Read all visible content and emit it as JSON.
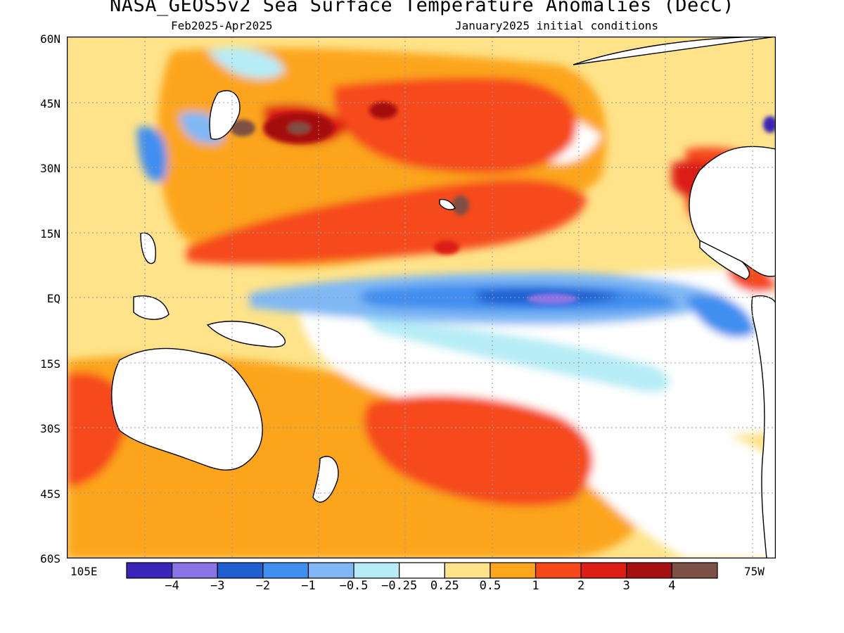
{
  "header": {
    "title": "NASA_GEOS5v2 Sea Surface Temperature Anomalies (DecC)",
    "period": "Feb2025-Apr2025",
    "initial_conditions": "January2025 initial conditions"
  },
  "axes": {
    "lat_labels": [
      "60N",
      "45N",
      "30N",
      "15N",
      "EQ",
      "15S",
      "30S",
      "45S",
      "60S"
    ],
    "lon_left": "105E",
    "lon_right": "75W"
  },
  "colorbar": {
    "colors": [
      "#3b24b8",
      "#8a74e6",
      "#1f5fd0",
      "#3f8ef0",
      "#7fb8f4",
      "#b6ecf6",
      "#ffffff",
      "#fee38a",
      "#fca51d",
      "#f6481a",
      "#dc1e14",
      "#a51010",
      "#7d5045"
    ],
    "labels": [
      "-4",
      "-3",
      "-2",
      "-1",
      "-0.5",
      "-0.25",
      "0.25",
      "0.5",
      "1",
      "2",
      "3",
      "4"
    ]
  }
}
